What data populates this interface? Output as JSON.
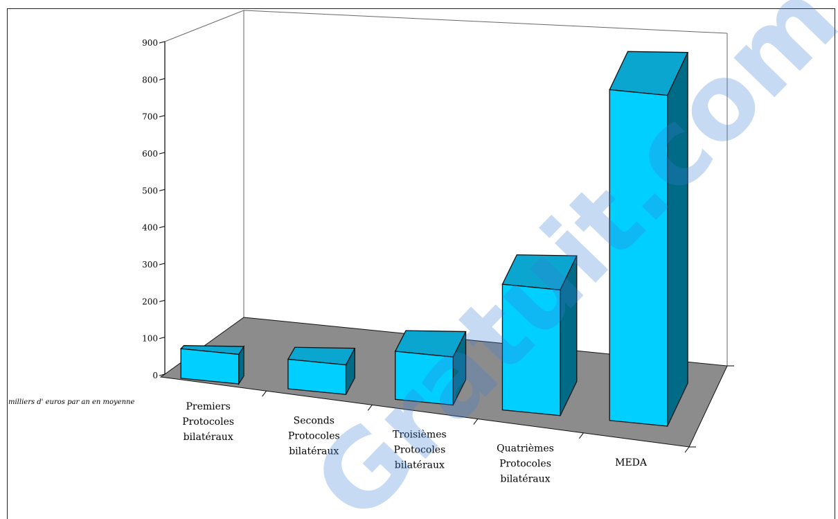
{
  "chart_data": {
    "type": "bar",
    "style": "3d",
    "categories": [
      [
        "Premiers",
        "Protocoles",
        "bilatéraux"
      ],
      [
        "Seconds",
        "Protocoles",
        "bilatéraux"
      ],
      [
        "Troisièmes",
        "Protocoles",
        "bilatéraux"
      ],
      [
        "Quatrièmes",
        "Protocoles",
        "bilatéraux"
      ],
      [
        "MEDA"
      ]
    ],
    "values": [
      80,
      80,
      130,
      340,
      895
    ],
    "ylim": [
      0,
      900
    ],
    "yticks": [
      "0",
      "100",
      "200",
      "300",
      "400",
      "500",
      "600",
      "700",
      "800",
      "900"
    ],
    "ylabel": "milliers d' euros par an en moyenne",
    "title": "",
    "grid": false,
    "colors": {
      "front": "#00cfff",
      "top": "#0aa6cf",
      "side": "#006b86",
      "floor": "#8c8c8c",
      "outline": "#111111"
    }
  },
  "watermark": {
    "text": "Gratuit.com",
    "color": "#3b7ed6"
  }
}
